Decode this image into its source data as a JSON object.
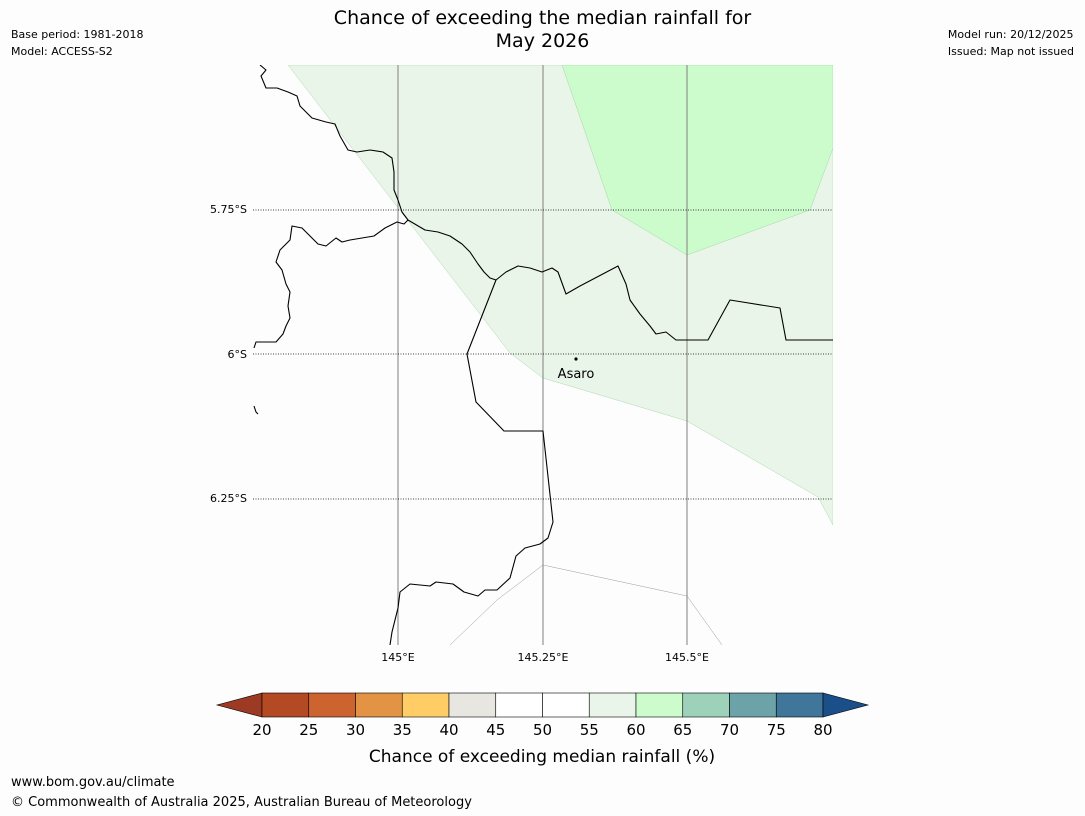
{
  "header": {
    "title_line1": "Chance of exceeding the median rainfall for",
    "title_line2": "May 2026",
    "base_period": "Base period: 1981-2018",
    "model": "Model: ACCESS-S2",
    "model_run": "Model run: 20/12/2025",
    "issued": "Issued: Map not issued"
  },
  "map": {
    "lat_labels": [
      "5.75°S",
      "6°S",
      "6.25°S"
    ],
    "lon_labels": [
      "145°E",
      "145.25°E",
      "145.5°E"
    ],
    "place": "Asaro",
    "colors": {
      "band_55_60": "#eaf5ea",
      "band_60_65": "#ccfccc",
      "border": "#000000",
      "gridline": "#808080"
    }
  },
  "legend": {
    "title": "Chance of exceeding median rainfall (%)",
    "ticks": [
      "20",
      "25",
      "30",
      "35",
      "40",
      "45",
      "50",
      "55",
      "60",
      "65",
      "70",
      "75",
      "80"
    ],
    "colors": [
      "#9c3a23",
      "#b34a24",
      "#cd6430",
      "#e39344",
      "#ffcc66",
      "#e8e6e1",
      "#ffffff",
      "#ffffff",
      "#eaf5ea",
      "#ccfccc",
      "#9dd1b9",
      "#6ca3a8",
      "#3f7699",
      "#1b4f8a"
    ]
  },
  "footer": {
    "url": "www.bom.gov.au/climate",
    "copyright": "© Commonwealth of Australia 2025, Australian Bureau of Meteorology"
  }
}
